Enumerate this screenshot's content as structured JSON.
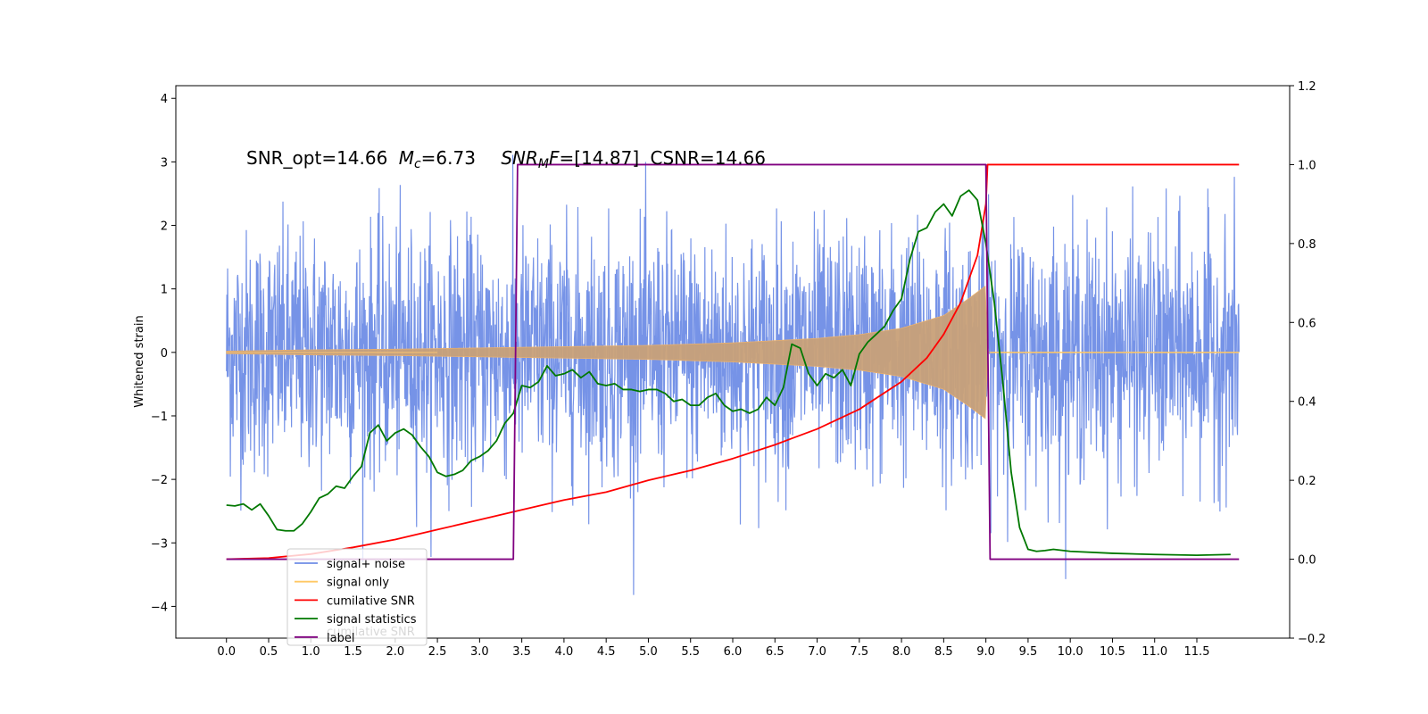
{
  "chart_data": {
    "type": "line",
    "title": "",
    "annotation": {
      "snr_opt": "SNR_opt=14.66",
      "mc_symbol": "M",
      "mc_sub": "c",
      "mc_value": "=6.73",
      "snrmf_symbol": "SNR",
      "snrmf_sub": "M",
      "snrmf_f": "F",
      "snrmf_value": "=[14.87]",
      "csnr": "CSNR=14.66"
    },
    "ylabel": "Whitened strain",
    "xlim": [
      -0.6,
      12.6
    ],
    "ylim_left": [
      -4.5,
      4.2
    ],
    "ylim_right": [
      -0.2,
      1.2
    ],
    "x_ticks": [
      "0.0",
      "0.5",
      "1.0",
      "1.5",
      "2.0",
      "2.5",
      "3.0",
      "3.5",
      "4.0",
      "4.5",
      "5.0",
      "5.5",
      "6.0",
      "6.5",
      "7.0",
      "7.5",
      "8.0",
      "8.5",
      "9.0",
      "9.5",
      "10.0",
      "10.5",
      "11.0",
      "11.5"
    ],
    "y_ticks_left": [
      "4",
      "3",
      "2",
      "1",
      "0",
      "−1",
      "−2",
      "−3",
      "−4"
    ],
    "y_ticks_right": [
      "1.2",
      "1.0",
      "0.8",
      "0.6",
      "0.4",
      "0.2",
      "0.0",
      "−0.2"
    ],
    "legend_position": "lower-left",
    "legend": [
      {
        "label": "signal+ noise",
        "color": "#6f8de6"
      },
      {
        "label": "signal only",
        "color": "#ffc864"
      },
      {
        "label": "cumilative SNR",
        "color": "#ff0000"
      },
      {
        "label": "signal statistics",
        "color": "#007800"
      },
      {
        "label": "label",
        "color": "#800080"
      }
    ],
    "legend_ghost_text": "cumilative SNR",
    "series": [
      {
        "name": "signal+ noise",
        "axis": "left",
        "x_range": [
          0.0,
          12.0
        ],
        "noise_sigma": 0.95,
        "color": "#6f8de6"
      },
      {
        "name": "signal only",
        "axis": "left",
        "x_range": [
          0.0,
          12.0
        ],
        "envelope": [
          [
            0.0,
            0.02
          ],
          [
            1.0,
            0.04
          ],
          [
            2.0,
            0.05
          ],
          [
            3.0,
            0.07
          ],
          [
            3.5,
            0.08
          ],
          [
            4.0,
            0.09
          ],
          [
            5.0,
            0.11
          ],
          [
            6.0,
            0.15
          ],
          [
            7.0,
            0.22
          ],
          [
            7.5,
            0.28
          ],
          [
            8.0,
            0.38
          ],
          [
            8.5,
            0.58
          ],
          [
            8.8,
            0.85
          ],
          [
            9.0,
            1.05
          ],
          [
            9.02,
            0.0
          ],
          [
            12.0,
            0.0
          ]
        ],
        "color": "#c8a078"
      },
      {
        "name": "cumilative SNR",
        "axis": "right",
        "x": [
          0.0,
          0.5,
          1.0,
          1.5,
          2.0,
          2.5,
          3.0,
          3.5,
          4.0,
          4.5,
          5.0,
          5.5,
          6.0,
          6.5,
          7.0,
          7.5,
          8.0,
          8.3,
          8.5,
          8.7,
          8.9,
          9.0,
          9.02,
          12.0
        ],
        "y": [
          0.0,
          0.003,
          0.013,
          0.03,
          0.05,
          0.075,
          0.1,
          0.125,
          0.15,
          0.17,
          0.2,
          0.225,
          0.255,
          0.29,
          0.33,
          0.38,
          0.45,
          0.51,
          0.57,
          0.65,
          0.77,
          0.9,
          1.0,
          1.0
        ],
        "color": "#ff0000"
      },
      {
        "name": "signal statistics",
        "axis": "right",
        "x": [
          0.0,
          0.1,
          0.2,
          0.3,
          0.4,
          0.5,
          0.6,
          0.7,
          0.8,
          0.9,
          1.0,
          1.1,
          1.2,
          1.3,
          1.4,
          1.5,
          1.6,
          1.7,
          1.8,
          1.9,
          2.0,
          2.1,
          2.2,
          2.3,
          2.4,
          2.5,
          2.6,
          2.7,
          2.8,
          2.9,
          3.0,
          3.1,
          3.2,
          3.3,
          3.4,
          3.5,
          3.6,
          3.7,
          3.8,
          3.9,
          4.0,
          4.1,
          4.2,
          4.3,
          4.4,
          4.5,
          4.6,
          4.7,
          4.8,
          4.9,
          5.0,
          5.1,
          5.2,
          5.3,
          5.4,
          5.5,
          5.6,
          5.7,
          5.8,
          5.9,
          6.0,
          6.1,
          6.2,
          6.3,
          6.4,
          6.5,
          6.6,
          6.7,
          6.8,
          6.9,
          7.0,
          7.1,
          7.2,
          7.3,
          7.4,
          7.5,
          7.6,
          7.7,
          7.8,
          7.9,
          8.0,
          8.1,
          8.2,
          8.3,
          8.4,
          8.5,
          8.6,
          8.7,
          8.8,
          8.9,
          9.0,
          9.1,
          9.2,
          9.3,
          9.4,
          9.5,
          9.6,
          9.7,
          9.8,
          10.0,
          10.5,
          11.0,
          11.5,
          11.9
        ],
        "y": [
          0.137,
          0.135,
          0.14,
          0.125,
          0.14,
          0.11,
          0.075,
          0.072,
          0.072,
          0.09,
          0.12,
          0.155,
          0.165,
          0.185,
          0.18,
          0.21,
          0.235,
          0.32,
          0.34,
          0.3,
          0.32,
          0.33,
          0.315,
          0.285,
          0.26,
          0.22,
          0.21,
          0.215,
          0.225,
          0.25,
          0.26,
          0.275,
          0.3,
          0.345,
          0.37,
          0.44,
          0.435,
          0.45,
          0.49,
          0.465,
          0.47,
          0.48,
          0.46,
          0.475,
          0.445,
          0.44,
          0.445,
          0.43,
          0.43,
          0.425,
          0.43,
          0.43,
          0.42,
          0.4,
          0.405,
          0.39,
          0.39,
          0.41,
          0.42,
          0.39,
          0.375,
          0.38,
          0.37,
          0.38,
          0.41,
          0.39,
          0.435,
          0.545,
          0.535,
          0.47,
          0.44,
          0.47,
          0.46,
          0.48,
          0.44,
          0.52,
          0.55,
          0.57,
          0.59,
          0.63,
          0.66,
          0.76,
          0.83,
          0.84,
          0.88,
          0.9,
          0.87,
          0.92,
          0.935,
          0.91,
          0.8,
          0.65,
          0.45,
          0.22,
          0.08,
          0.025,
          0.02,
          0.022,
          0.025,
          0.02,
          0.015,
          0.012,
          0.01,
          0.012
        ],
        "color": "#007800"
      },
      {
        "name": "label",
        "axis": "right",
        "x": [
          0.0,
          3.4,
          3.45,
          9.0,
          9.05,
          12.0
        ],
        "y": [
          0.0,
          0.0,
          1.0,
          1.0,
          0.0,
          0.0
        ],
        "color": "#800080"
      }
    ]
  }
}
